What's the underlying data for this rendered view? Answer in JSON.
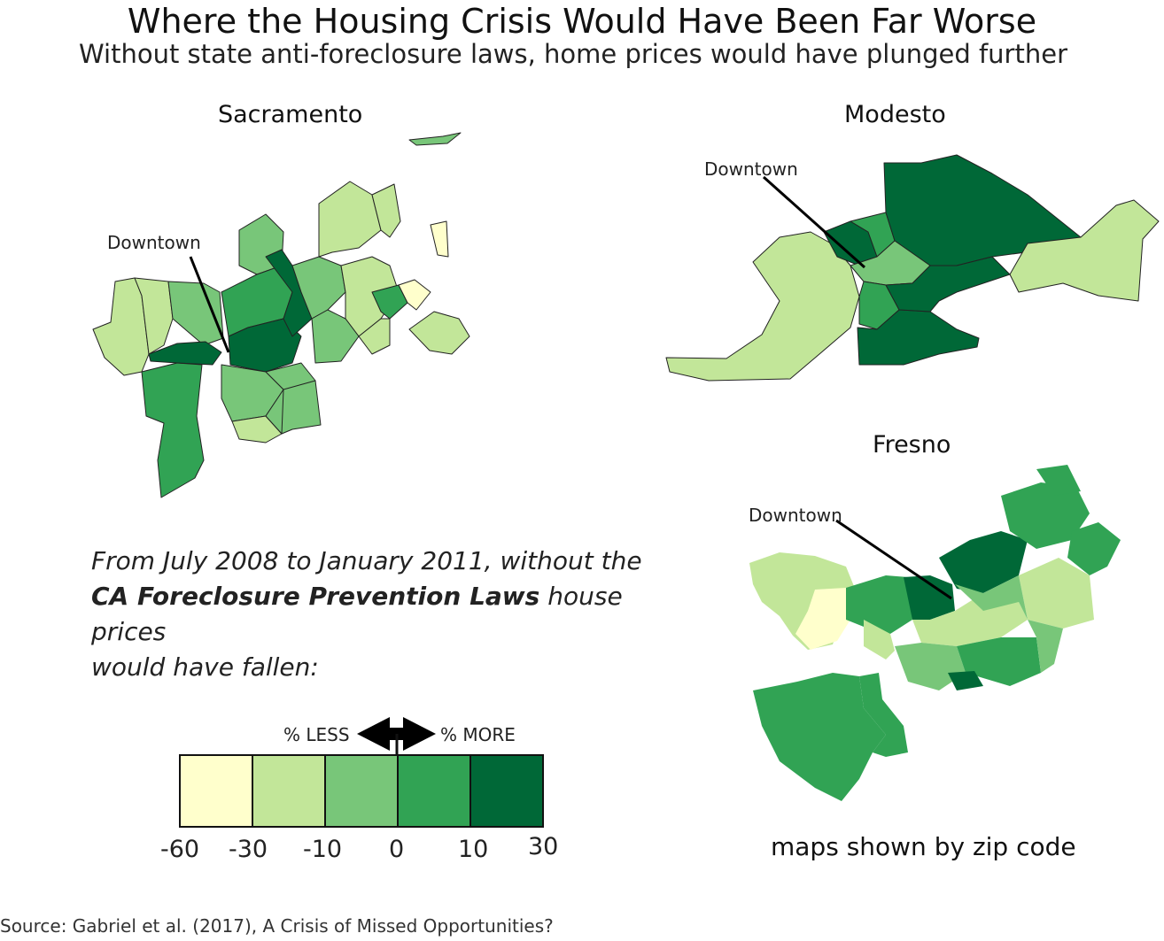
{
  "title": "Where the Housing Crisis Would Have Been Far Worse",
  "subtitle": "Without state anti-foreclosure laws, home prices would have plunged further",
  "maps": {
    "sacramento": {
      "title": "Sacramento",
      "downtown_label": "Downtown"
    },
    "modesto": {
      "title": "Modesto",
      "downtown_label": "Downtown"
    },
    "fresno": {
      "title": "Fresno",
      "downtown_label": "Downtown"
    }
  },
  "note": {
    "line1": "From July 2008 to January 2011, without the",
    "bold": "CA Foreclosure Prevention Laws",
    "line2_rest": " house prices",
    "line3": "would have fallen:"
  },
  "legend": {
    "less_label": "% LESS",
    "more_label": "% MORE",
    "ticks": [
      "-60",
      "-30",
      "-10",
      "0",
      "10",
      "30"
    ],
    "bins": [
      {
        "color": "#ffffcc"
      },
      {
        "color": "#c2e699"
      },
      {
        "color": "#78c679"
      },
      {
        "color": "#31a354"
      },
      {
        "color": "#006837"
      }
    ]
  },
  "zip_note": "maps shown by zip code",
  "source": "Source: Gabriel et al. (2017), A Crisis of Missed Opportunities?"
}
